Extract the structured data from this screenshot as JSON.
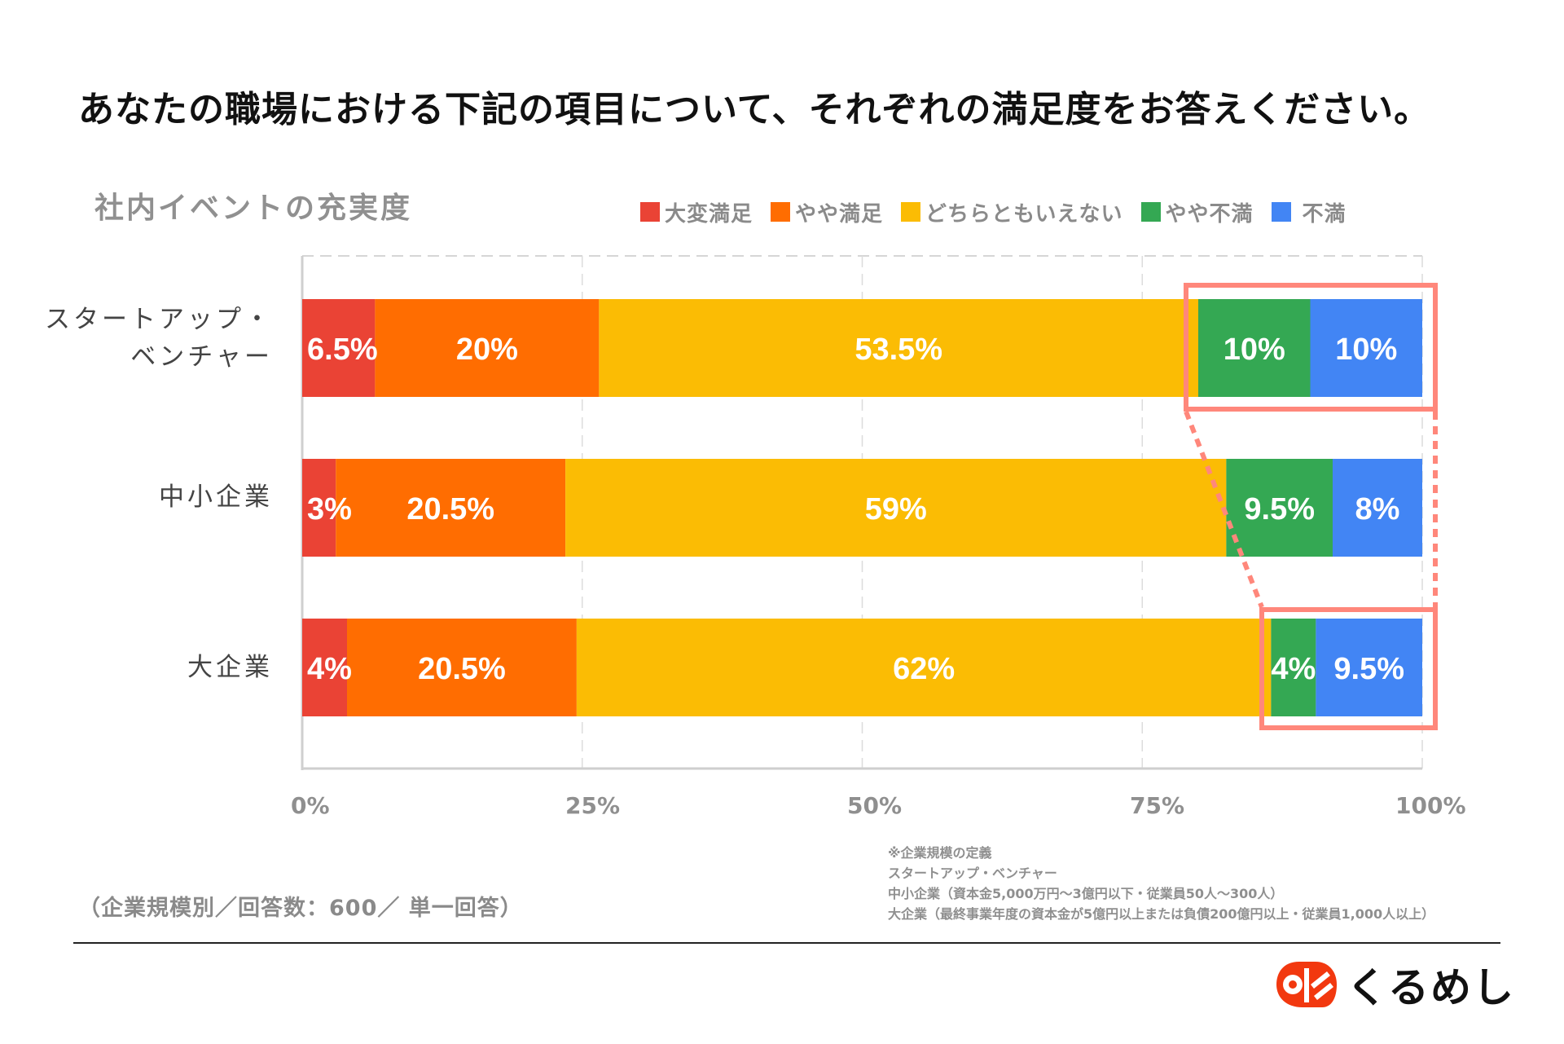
{
  "title": "あなたの職場における下記の項目について、それぞれの満足度をお答えください。",
  "subtitle": "社内イベントの充実度",
  "colors": {
    "very_satisfied": "#EA4335",
    "somewhat_satisfied": "#FF6D01",
    "neutral": "#FBBC04",
    "somewhat_dissatisfied": "#34A853",
    "dissatisfied": "#4285F4",
    "highlight": "#FF877B"
  },
  "chart_data": {
    "type": "bar",
    "orientation": "horizontal",
    "stacked": true,
    "title": "社内イベントの充実度",
    "categories": [
      "スタートアップ・ベンチャー",
      "中小企業",
      "大企業"
    ],
    "category_label_lines": [
      [
        "スタートアップ・",
        "ベンチャー"
      ],
      [
        "中小企業"
      ],
      [
        "大企業"
      ]
    ],
    "series": [
      {
        "name": "大変満足",
        "color": "#EA4335",
        "values": [
          6.5,
          3,
          4
        ],
        "labels": [
          "6.5%",
          "3%",
          "4%"
        ]
      },
      {
        "name": "やや満足",
        "color": "#FF6D01",
        "values": [
          20,
          20.5,
          20.5
        ],
        "labels": [
          "20%",
          "20.5%",
          "20.5%"
        ]
      },
      {
        "name": "どちらともいえない",
        "color": "#FBBC04",
        "values": [
          53.5,
          59,
          62
        ],
        "labels": [
          "53.5%",
          "59%",
          "62%"
        ]
      },
      {
        "name": "やや不満",
        "color": "#34A853",
        "values": [
          10,
          9.5,
          4
        ],
        "labels": [
          "10%",
          "9.5%",
          "4%"
        ]
      },
      {
        "name": "不満",
        "color": "#4285F4",
        "values": [
          10,
          8,
          9.5
        ],
        "labels": [
          "10%",
          "8%",
          "9.5%"
        ]
      }
    ],
    "xlim": [
      0,
      100
    ],
    "x_ticks": [
      "0%",
      "25%",
      "50%",
      "75%",
      "100%"
    ],
    "grid": true,
    "legend_position": "top-right",
    "highlight_note": "やや不満＋不満 highlighted for スタートアップ・ベンチャー and 大企業"
  },
  "sample_note": "（企業規模別／回答数：600／ 単一回答）",
  "footnote": [
    "※企業規模の定義",
    "スタートアップ・ベンチャー",
    "中小企業（資本金5,000万円〜3億円以下・従業員50人〜300人）",
    "大企業（最終事業年度の資本金が5億円以上または負債200億円以上・従業員1,000人以上）"
  ],
  "logo": {
    "text": "くるめし"
  }
}
